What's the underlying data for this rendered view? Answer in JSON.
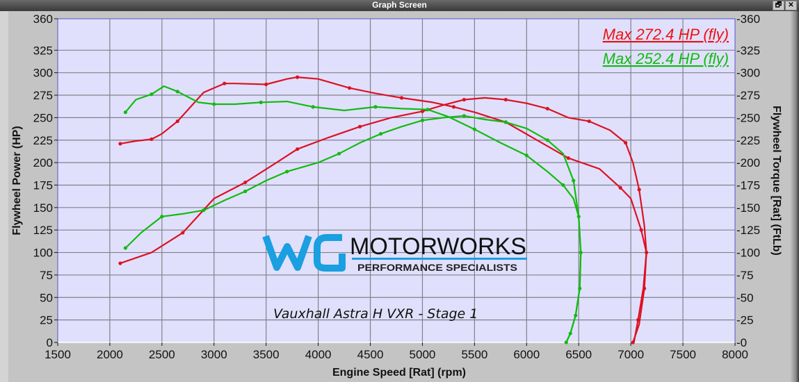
{
  "window": {
    "title": "Graph Screen",
    "restore_label": "🗗",
    "close_label": "✕"
  },
  "chart_data": {
    "type": "line",
    "title": "",
    "subtitle": "Vauxhall Astra H VXR - Stage 1",
    "xlabel": "Engine Speed [Rat] (rpm)",
    "ylabel": "Flywheel Power (HP)",
    "ylabel_right": "Flywheel Torque [Rat] (FtLb)",
    "xlim": [
      1500,
      8000
    ],
    "ylim": [
      0,
      360
    ],
    "ylim_right": [
      0,
      360
    ],
    "x_ticks": [
      1500,
      2000,
      2500,
      3000,
      3500,
      4000,
      4500,
      5000,
      5500,
      6000,
      6500,
      7000,
      7500,
      8000
    ],
    "y_ticks": [
      0,
      25,
      50,
      75,
      100,
      125,
      150,
      175,
      200,
      225,
      250,
      275,
      300,
      325,
      360
    ],
    "grid": true,
    "background": "#e0e0fc",
    "legend": [
      {
        "label": "Max 272.4 HP (fly)",
        "color": "#ee1111"
      },
      {
        "label": "Max 252.4 HP (fly)",
        "color": "#11bb11"
      }
    ],
    "series": [
      {
        "name": "Red power (HP)",
        "color": "#dd1122",
        "axis": "left",
        "x": [
          2100,
          2400,
          2700,
          3000,
          3300,
          3600,
          3800,
          4100,
          4400,
          4700,
          5000,
          5200,
          5400,
          5600,
          5800,
          6000,
          6200,
          6400,
          6600,
          6800,
          6950,
          7020,
          7080,
          7130,
          7150,
          7120,
          7070,
          7030
        ],
        "y": [
          88,
          100,
          122,
          160,
          178,
          200,
          215,
          228,
          240,
          250,
          257,
          264,
          270,
          272,
          270,
          266,
          260,
          250,
          246,
          236,
          222,
          200,
          170,
          130,
          100,
          60,
          25,
          0
        ]
      },
      {
        "name": "Red torque (FtLb)",
        "color": "#dd1122",
        "axis": "right",
        "x": [
          2100,
          2250,
          2400,
          2500,
          2650,
          2900,
          3100,
          3200,
          3500,
          3700,
          3800,
          4000,
          4300,
          4550,
          4800,
          5100,
          5300,
          5500,
          5800,
          6100,
          6400,
          6700,
          6900,
          7000,
          7100,
          7150,
          7130,
          7080,
          7020
        ],
        "y": [
          221,
          224,
          226,
          232,
          246,
          278,
          288,
          288,
          287,
          293,
          295,
          293,
          283,
          277,
          272,
          267,
          262,
          256,
          245,
          225,
          205,
          193,
          172,
          160,
          125,
          100,
          60,
          20,
          0
        ]
      },
      {
        "name": "Green power (HP)",
        "color": "#11bb11",
        "axis": "left",
        "x": [
          2150,
          2300,
          2500,
          2700,
          2900,
          3100,
          3300,
          3500,
          3700,
          4000,
          4200,
          4400,
          4600,
          4800,
          5000,
          5200,
          5400,
          5600,
          5800,
          6000,
          6200,
          6350,
          6450,
          6500,
          6520,
          6510,
          6470,
          6420,
          6380
        ],
        "y": [
          105,
          122,
          140,
          143,
          147,
          158,
          168,
          180,
          190,
          200,
          210,
          222,
          232,
          240,
          247,
          250,
          252,
          248,
          245,
          238,
          225,
          210,
          180,
          140,
          100,
          60,
          30,
          10,
          0
        ]
      },
      {
        "name": "Green torque (FtLb)",
        "color": "#11bb11",
        "axis": "right",
        "x": [
          2150,
          2250,
          2400,
          2520,
          2650,
          2850,
          3000,
          3200,
          3450,
          3700,
          3950,
          4250,
          4550,
          4800,
          5050,
          5250,
          5500,
          5750,
          6000,
          6200,
          6350,
          6450,
          6500,
          6520,
          6510,
          6470,
          6420,
          6380
        ],
        "y": [
          256,
          270,
          276,
          285,
          279,
          267,
          265,
          265,
          267,
          268,
          262,
          258,
          262,
          260,
          259,
          251,
          237,
          222,
          208,
          190,
          175,
          160,
          140,
          100,
          60,
          30,
          10,
          0
        ]
      }
    ]
  },
  "logo": {
    "mark": "WG",
    "name": "MOTORWORKS",
    "tagline": "PERFORMANCE SPECIALISTS",
    "mark_color": "#1a9fe0"
  }
}
